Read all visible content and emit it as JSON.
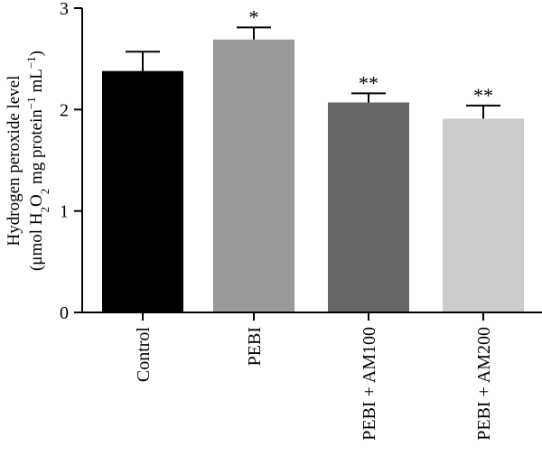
{
  "chart_data": {
    "type": "bar",
    "title": "",
    "xlabel": "",
    "ylabel_line1": "Hydrogen peroxide level",
    "ylabel_line2": {
      "open": "(μmol H",
      "sub1": "2",
      "mid1": "O",
      "sub2": "2",
      "mid2": " mg protein",
      "sup1": "−1",
      "mid3": " mL",
      "sup2": "−1",
      "close": ")"
    },
    "ylim": [
      0,
      3
    ],
    "yticks": [
      "0",
      "1",
      "2",
      "3"
    ],
    "grid": false,
    "categories": [
      "Control",
      "PEBI",
      "PEBI + AM100",
      "PEBI + AM200"
    ],
    "values": [
      2.38,
      2.69,
      2.07,
      1.91
    ],
    "errors": [
      0.19,
      0.12,
      0.09,
      0.13
    ],
    "significance": [
      "",
      "*",
      "**",
      "**"
    ],
    "colors": [
      "#000000",
      "#999999",
      "#666666",
      "#cccccc"
    ]
  }
}
